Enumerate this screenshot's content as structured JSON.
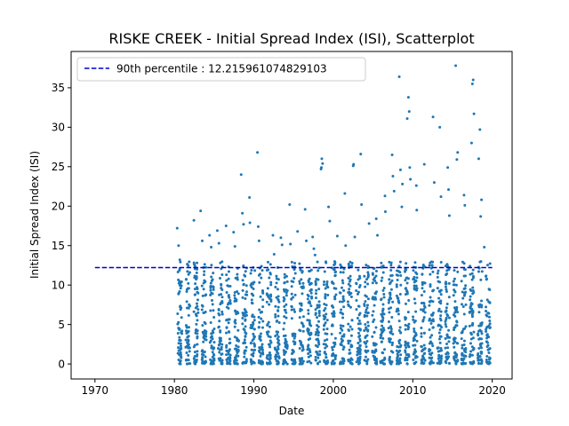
{
  "chart_data": {
    "type": "scatter",
    "title": "RISKE CREEK - Initial Spread Index (ISI), Scatterplot",
    "xlabel": "Date",
    "ylabel": "Initial Spread Index (ISI)",
    "xlim": [
      1967,
      2022.5
    ],
    "ylim": [
      -1.9,
      39.6
    ],
    "xticks": [
      1970,
      1980,
      1990,
      2000,
      2010,
      2020
    ],
    "yticks": [
      0,
      5,
      10,
      15,
      20,
      25,
      30,
      35
    ],
    "grid": false,
    "legend_position": "top-left",
    "percentile_line": {
      "label": "90th percentile : 12.215961074829103",
      "value": 12.215961074829103,
      "x_range": [
        1970,
        2020
      ],
      "color": "#0000cc"
    },
    "series": [
      {
        "color": "#1f77b4",
        "x": [
          1980.35,
          1980.52,
          1980.68,
          1982.45,
          1982.6,
          1983.3,
          1983.5,
          1984.42,
          1984.63,
          1985.4,
          1985.6,
          1986.5,
          1987.45,
          1987.62,
          1988.4,
          1988.55,
          1988.7,
          1989.45,
          1989.5,
          1990.45,
          1990.55,
          1990.65,
          1992.4,
          1992.55,
          1993.4,
          1993.55,
          1994.5,
          1994.6,
          1995.5,
          1996.45,
          1996.6,
          1997.4,
          1997.55,
          1997.7,
          1998.45,
          1998.5,
          1998.55,
          1998.65,
          1999.4,
          1999.55,
          2000.5,
          2001.45,
          2001.55,
          2002.5,
          2002.55,
          2002.7,
          2003.45,
          2003.55,
          2004.5,
          2005.4,
          2005.55,
          2006.5,
          2006.55,
          2007.4,
          2007.5,
          2007.65,
          2008.3,
          2008.45,
          2008.62,
          2008.7,
          2009.3,
          2009.45,
          2009.55,
          2009.62,
          2009.7,
          2010.45,
          2010.5,
          2011.45,
          2012.55,
          2012.7,
          2013.4,
          2013.55,
          2014.4,
          2014.5,
          2014.6,
          2015.4,
          2015.55,
          2015.65,
          2016.45,
          2016.55,
          2017.4,
          2017.5,
          2017.6,
          2017.7,
          2018.3,
          2018.45,
          2018.55,
          2018.65,
          2019.0,
          2019.2
        ],
        "y": [
          17.2,
          15.0,
          13.2,
          18.2,
          12.4,
          19.4,
          15.6,
          16.3,
          14.8,
          16.9,
          15.3,
          17.5,
          16.7,
          14.9,
          24.0,
          19.1,
          17.7,
          21.1,
          17.9,
          26.8,
          17.4,
          15.6,
          16.3,
          13.9,
          16.0,
          15.1,
          20.2,
          15.2,
          16.8,
          19.6,
          15.6,
          16.1,
          14.6,
          13.8,
          24.7,
          24.9,
          26.0,
          25.4,
          19.9,
          18.1,
          16.2,
          21.6,
          15.0,
          25.1,
          25.3,
          16.1,
          26.6,
          20.2,
          17.8,
          18.4,
          16.3,
          21.3,
          19.3,
          26.5,
          23.8,
          21.9,
          36.4,
          24.6,
          19.9,
          22.8,
          31.1,
          33.8,
          32.0,
          24.9,
          23.4,
          22.6,
          19.5,
          25.3,
          31.3,
          23.0,
          30.0,
          21.2,
          24.9,
          22.1,
          18.8,
          37.8,
          25.9,
          26.8,
          21.4,
          20.1,
          28.0,
          35.5,
          36.0,
          31.7,
          26.0,
          29.7,
          18.7,
          20.8,
          14.8,
          11.1
        ],
        "band_x_start": 1980.3,
        "band_x_end": 2019.1,
        "band_y_max": 13.0,
        "band_y_min": 0,
        "band_count": 39
      }
    ]
  }
}
